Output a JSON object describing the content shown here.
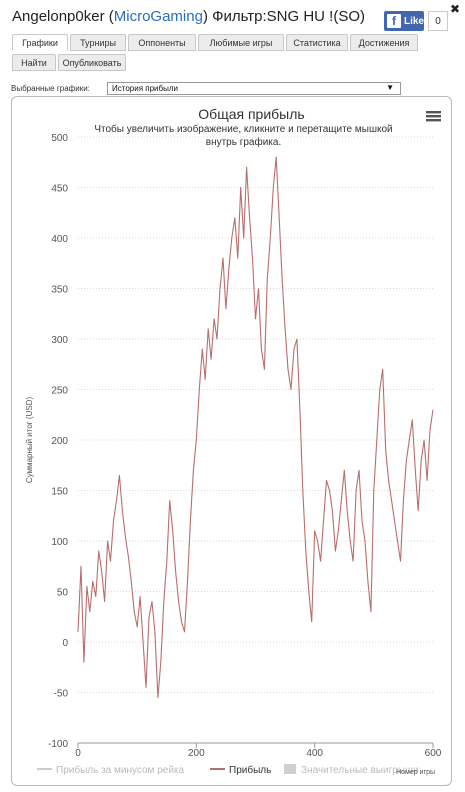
{
  "header": {
    "player": "Angelonp0ker",
    "open_paren": "(",
    "network": "MicroGaming",
    "close_paren": ")",
    "filter": "Фильтр:SNG HU !(SO)",
    "like_label": "Like",
    "like_count": "0",
    "close_symbol": "✖"
  },
  "tabs": {
    "row1": [
      "Графики",
      "Турниры",
      "Оппоненты",
      "Любимые игры",
      "Статистика",
      "Достижения"
    ],
    "row2": [
      "Найти",
      "Опубликовать"
    ],
    "active": "Графики"
  },
  "graph_select": {
    "label": "Выбранные графики:",
    "value": "История прибыли"
  },
  "colors": {
    "profit_line": "#b96e6e",
    "rake_line": "#cccccc",
    "grid": "#d9d9d9"
  },
  "chart_data": {
    "type": "line",
    "title": "Общая прибыль",
    "subtitle": "Чтобы увеличить изображение, кликните и перетащите мышкой внутрь графика.",
    "xlabel": "Номер игры",
    "ylabel": "Суммарный итог (USD)",
    "xlim": [
      0,
      600
    ],
    "ylim": [
      -100,
      500
    ],
    "x_ticks": [
      0,
      200,
      400,
      600
    ],
    "y_ticks": [
      -100,
      -50,
      0,
      50,
      100,
      150,
      200,
      250,
      300,
      350,
      400,
      450,
      500
    ],
    "grid": true,
    "legend_position": "bottom",
    "legend": [
      "Прибыль за минусом рейка",
      "Прибыль",
      "Значительные выигрыши"
    ],
    "series": [
      {
        "name": "Прибыль",
        "x": [
          0,
          5,
          10,
          15,
          20,
          25,
          30,
          35,
          40,
          45,
          50,
          55,
          60,
          65,
          70,
          75,
          80,
          85,
          90,
          95,
          100,
          105,
          110,
          115,
          120,
          125,
          130,
          135,
          140,
          145,
          150,
          155,
          160,
          165,
          170,
          175,
          180,
          185,
          190,
          195,
          200,
          205,
          210,
          215,
          220,
          225,
          230,
          235,
          240,
          245,
          250,
          255,
          260,
          265,
          270,
          275,
          280,
          285,
          290,
          295,
          300,
          305,
          310,
          315,
          320,
          325,
          330,
          335,
          340,
          345,
          350,
          355,
          360,
          365,
          370,
          375,
          380,
          385,
          390,
          395,
          400,
          405,
          410,
          415,
          420,
          425,
          430,
          435,
          440,
          445,
          450,
          455,
          460,
          465,
          470,
          475,
          480,
          485,
          490,
          495,
          500,
          505,
          510,
          515,
          520,
          525,
          530,
          535,
          540,
          545,
          550,
          555,
          560,
          565,
          570,
          575,
          580,
          585,
          590,
          595,
          600
        ],
        "y": [
          10,
          75,
          -20,
          55,
          30,
          60,
          45,
          90,
          70,
          40,
          100,
          80,
          120,
          140,
          165,
          130,
          105,
          85,
          60,
          30,
          15,
          45,
          0,
          -45,
          25,
          40,
          10,
          -55,
          -20,
          40,
          80,
          140,
          110,
          70,
          40,
          20,
          10,
          60,
          120,
          170,
          200,
          250,
          290,
          260,
          310,
          280,
          320,
          300,
          350,
          380,
          330,
          370,
          400,
          420,
          380,
          450,
          400,
          470,
          420,
          380,
          320,
          350,
          290,
          270,
          360,
          400,
          450,
          480,
          420,
          360,
          310,
          270,
          250,
          290,
          300,
          230,
          150,
          90,
          50,
          20,
          110,
          100,
          80,
          120,
          160,
          150,
          130,
          90,
          110,
          140,
          170,
          130,
          100,
          80,
          150,
          170,
          120,
          100,
          60,
          30,
          150,
          200,
          250,
          270,
          190,
          160,
          140,
          120,
          100,
          80,
          140,
          180,
          200,
          220,
          170,
          130,
          180,
          200,
          160,
          210,
          230
        ]
      }
    ]
  }
}
